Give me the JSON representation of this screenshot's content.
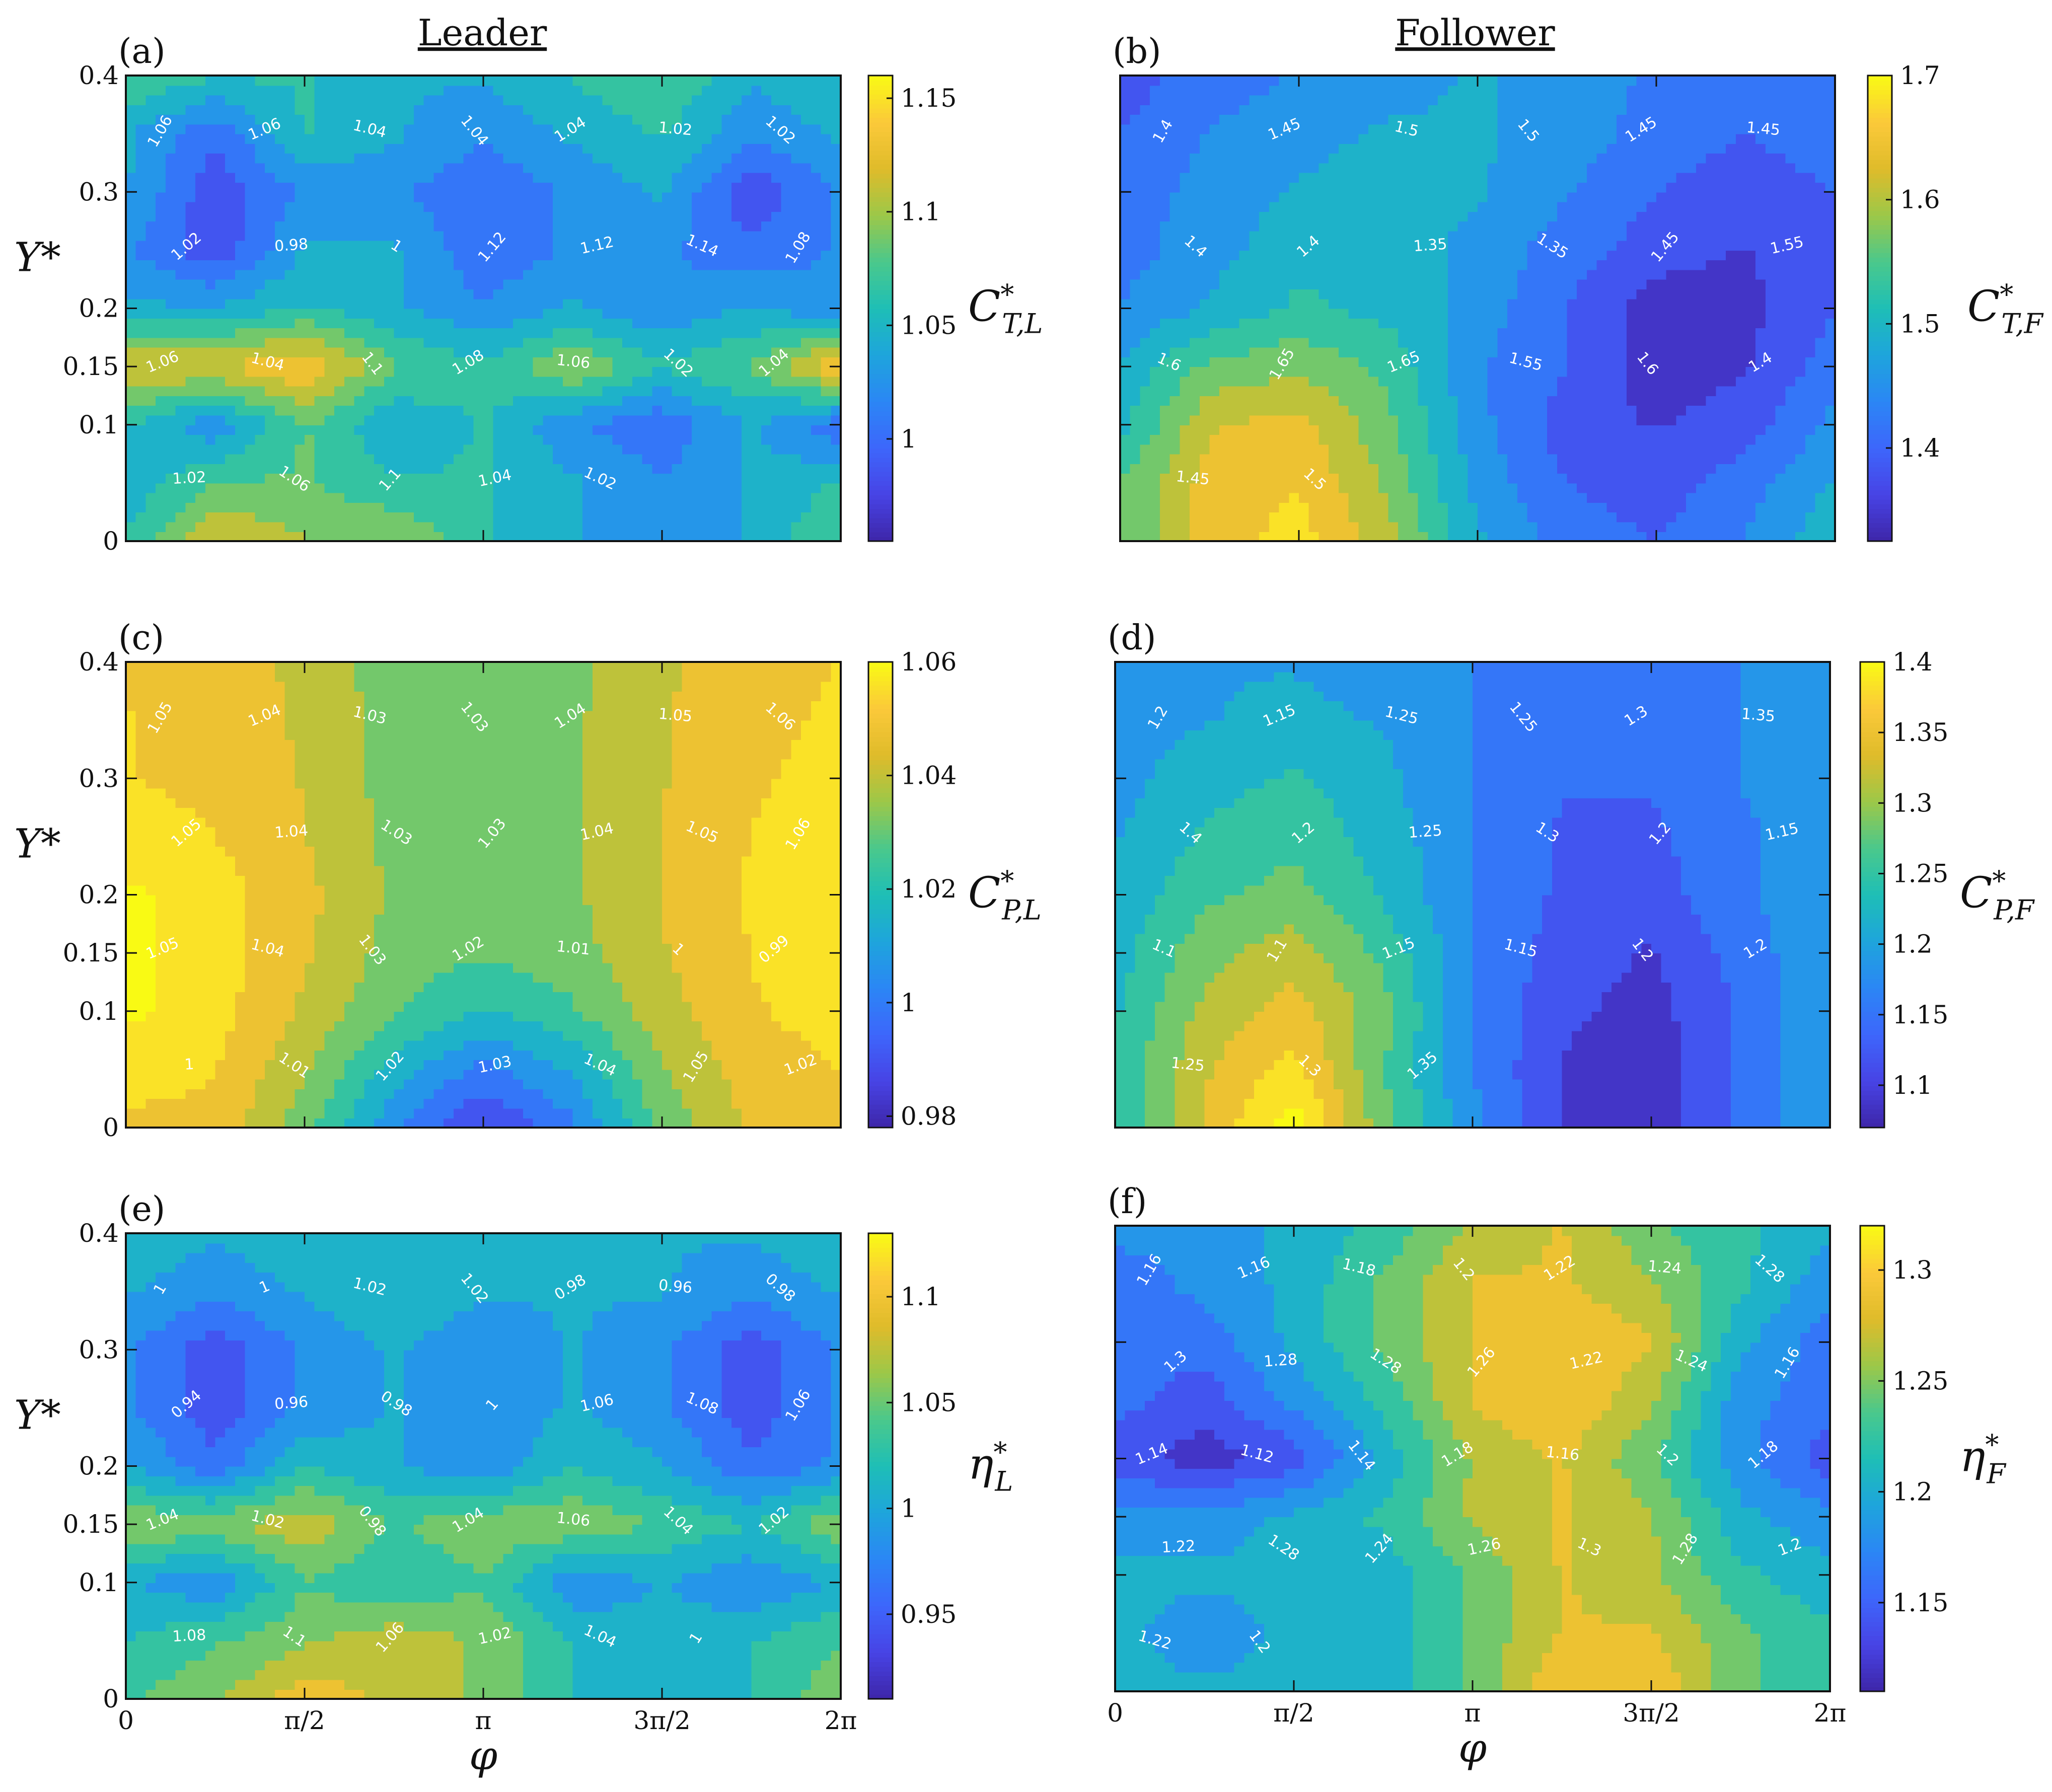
{
  "headers": {
    "leader": "Leader",
    "follower": "Follower"
  },
  "x_axis_label": "φ",
  "y_axis_label": "Y*",
  "x_ticks": [
    "0",
    "π/2",
    "π",
    "3π/2",
    "2π"
  ],
  "y_ticks": [
    "0",
    "0.1",
    "0.15",
    "0.2",
    "0.3",
    "0.4"
  ],
  "colormap": [
    "#3e26a8",
    "#4743e5",
    "#3d66fb",
    "#2b86f5",
    "#1ea5dc",
    "#1ebeb6",
    "#4ac88c",
    "#9cc849",
    "#dfbb2a",
    "#fbc93a",
    "#f9fa14"
  ],
  "chart_data": [
    {
      "type": "heatmap",
      "label": "(a)",
      "column": "Leader",
      "colorbar": {
        "symbol": "C",
        "sup": "*",
        "sub": "T,L",
        "ticks": [
          "1",
          "1.05",
          "1.1",
          "1.15"
        ],
        "tick_values": [
          1,
          1.05,
          1.1,
          1.15
        ],
        "range": [
          0.955,
          1.16
        ]
      },
      "y_ticks": [
        "0",
        "0.1",
        "0.15",
        "0.2",
        "0.3",
        "0.4"
      ],
      "show_x_ticks": false,
      "show_x_label": false,
      "show_y_label": true,
      "xlim": [
        0,
        6.2832
      ],
      "ylim": [
        0,
        0.4
      ],
      "x_nodes": [
        0,
        0.785,
        1.571,
        2.356,
        3.142,
        3.927,
        4.712,
        5.498,
        6.283
      ],
      "y_nodes": [
        0,
        0.05,
        0.1,
        0.15,
        0.2,
        0.25,
        0.3,
        0.35,
        0.4
      ],
      "z": [
        [
          1.06,
          1.12,
          1.1,
          1.1,
          1.06,
          1.04,
          1.02,
          1.04,
          1.08
        ],
        [
          1.04,
          1.08,
          1.08,
          1.06,
          1.06,
          1.04,
          1.02,
          1.04,
          1.06
        ],
        [
          1.06,
          1.02,
          1.08,
          1.04,
          1.06,
          1.02,
          1.0,
          1.04,
          1.0
        ],
        [
          1.12,
          1.12,
          1.14,
          1.08,
          1.06,
          1.1,
          1.06,
          1.08,
          1.14
        ],
        [
          1.04,
          1.04,
          1.06,
          1.04,
          1.02,
          1.04,
          1.02,
          1.04,
          1.02
        ],
        [
          1.02,
          0.98,
          1.04,
          1.04,
          1.0,
          1.02,
          1.02,
          1.0,
          1.02
        ],
        [
          1.04,
          0.98,
          1.02,
          1.02,
          1.0,
          1.02,
          1.04,
          0.98,
          1.02
        ],
        [
          1.04,
          1.0,
          1.06,
          1.04,
          1.02,
          1.04,
          1.06,
          1.02,
          1.04
        ],
        [
          1.08,
          1.06,
          1.06,
          1.04,
          1.04,
          1.06,
          1.08,
          1.04,
          1.06
        ]
      ],
      "contour_labels": [
        "1.06",
        "1.06",
        "1.04",
        "1.04",
        "1.04",
        "1.02",
        "1.02",
        "1.02",
        "0.98",
        "1",
        "1.12",
        "1.12",
        "1.14",
        "1.08",
        "1.06",
        "1.04",
        "1.1",
        "1.08",
        "1.06",
        "1.02",
        "1.04",
        "1.02",
        "1.06",
        "1.1",
        "1.04",
        "1.02"
      ]
    },
    {
      "type": "heatmap",
      "label": "(b)",
      "column": "Follower",
      "colorbar": {
        "symbol": "C",
        "sup": "*",
        "sub": "T,F",
        "ticks": [
          "1.4",
          "1.5",
          "1.6",
          "1.7"
        ],
        "tick_values": [
          1.4,
          1.5,
          1.6,
          1.7
        ],
        "range": [
          1.325,
          1.7
        ]
      },
      "y_ticks": [],
      "show_x_ticks": false,
      "show_x_label": false,
      "show_y_label": false,
      "xlim": [
        0,
        6.2832
      ],
      "ylim": [
        0,
        0.4
      ],
      "x_nodes": [
        0,
        0.785,
        1.571,
        2.356,
        3.142,
        3.927,
        4.712,
        5.498,
        6.283
      ],
      "y_nodes": [
        0,
        0.05,
        0.1,
        0.15,
        0.2,
        0.25,
        0.3,
        0.35,
        0.4
      ],
      "z": [
        [
          1.55,
          1.64,
          1.68,
          1.6,
          1.48,
          1.42,
          1.4,
          1.44,
          1.5
        ],
        [
          1.55,
          1.64,
          1.66,
          1.58,
          1.46,
          1.4,
          1.38,
          1.42,
          1.48
        ],
        [
          1.5,
          1.62,
          1.64,
          1.56,
          1.45,
          1.38,
          1.36,
          1.38,
          1.45
        ],
        [
          1.48,
          1.56,
          1.58,
          1.54,
          1.44,
          1.4,
          1.34,
          1.36,
          1.42
        ],
        [
          1.44,
          1.48,
          1.52,
          1.5,
          1.46,
          1.4,
          1.34,
          1.35,
          1.4
        ],
        [
          1.42,
          1.46,
          1.5,
          1.5,
          1.46,
          1.42,
          1.38,
          1.36,
          1.4
        ],
        [
          1.42,
          1.45,
          1.48,
          1.5,
          1.48,
          1.44,
          1.4,
          1.38,
          1.4
        ],
        [
          1.4,
          1.44,
          1.46,
          1.48,
          1.48,
          1.46,
          1.42,
          1.4,
          1.42
        ],
        [
          1.38,
          1.42,
          1.44,
          1.46,
          1.48,
          1.46,
          1.43,
          1.4,
          1.42
        ]
      ],
      "contour_labels": [
        "1.4",
        "1.45",
        "1.5",
        "1.5",
        "1.45",
        "1.45",
        "1.4",
        "1.4",
        "1.35",
        "1.35",
        "1.45",
        "1.55",
        "1.6",
        "1.65",
        "1.65",
        "1.55",
        "1.6",
        "1.4",
        "1.45",
        "1.5"
      ]
    },
    {
      "type": "heatmap",
      "label": "(c)",
      "column": "Leader",
      "colorbar": {
        "symbol": "C",
        "sup": "*",
        "sub": "P,L",
        "ticks": [
          "0.98",
          "1",
          "1.02",
          "1.04",
          "1.06"
        ],
        "tick_values": [
          0.98,
          1.0,
          1.02,
          1.04,
          1.06
        ],
        "range": [
          0.978,
          1.06
        ]
      },
      "y_ticks": [
        "0",
        "0.1",
        "0.15",
        "0.2",
        "0.3",
        "0.4"
      ],
      "show_x_ticks": false,
      "show_x_label": false,
      "show_y_label": true,
      "xlim": [
        0,
        6.2832
      ],
      "ylim": [
        0,
        0.4
      ],
      "x_nodes": [
        0,
        0.785,
        1.571,
        2.356,
        3.142,
        3.927,
        4.712,
        5.498,
        6.283
      ],
      "y_nodes": [
        0,
        0.05,
        0.1,
        0.15,
        0.2,
        0.25,
        0.3,
        0.35,
        0.4
      ],
      "z": [
        [
          1.05,
          1.05,
          1.03,
          1.005,
          0.985,
          1.0,
          1.03,
          1.045,
          1.05
        ],
        [
          1.055,
          1.052,
          1.037,
          1.015,
          1.0,
          1.012,
          1.035,
          1.048,
          1.052
        ],
        [
          1.062,
          1.055,
          1.042,
          1.028,
          1.018,
          1.026,
          1.04,
          1.051,
          1.055
        ],
        [
          1.062,
          1.056,
          1.045,
          1.032,
          1.028,
          1.032,
          1.043,
          1.052,
          1.056
        ],
        [
          1.062,
          1.055,
          1.046,
          1.034,
          1.03,
          1.034,
          1.044,
          1.053,
          1.058
        ],
        [
          1.055,
          1.052,
          1.044,
          1.033,
          1.03,
          1.034,
          1.044,
          1.052,
          1.055
        ],
        [
          1.052,
          1.05,
          1.043,
          1.032,
          1.03,
          1.034,
          1.043,
          1.051,
          1.054
        ],
        [
          1.052,
          1.05,
          1.042,
          1.032,
          1.03,
          1.034,
          1.043,
          1.05,
          1.053
        ],
        [
          1.051,
          1.049,
          1.041,
          1.031,
          1.03,
          1.033,
          1.042,
          1.049,
          1.052
        ]
      ],
      "contour_labels": [
        "1.05",
        "1.04",
        "1.03",
        "1.03",
        "1.04",
        "1.05",
        "1.06",
        "1.05",
        "1.04",
        "1.03",
        "1.03",
        "1.04",
        "1.05",
        "1.06",
        "1.05",
        "1.04",
        "1.03",
        "1.02",
        "1.01",
        "1",
        "0.99",
        "1",
        "1.01",
        "1.02",
        "1.03",
        "1.04",
        "1.05",
        "1.02"
      ]
    },
    {
      "type": "heatmap",
      "label": "(d)",
      "column": "Follower",
      "colorbar": {
        "symbol": "C",
        "sup": "*",
        "sub": "P,F",
        "ticks": [
          "1.1",
          "1.15",
          "1.2",
          "1.25",
          "1.3",
          "1.35",
          "1.4"
        ],
        "tick_values": [
          1.1,
          1.15,
          1.2,
          1.25,
          1.3,
          1.35,
          1.4
        ],
        "range": [
          1.07,
          1.4
        ]
      },
      "y_ticks": [],
      "show_x_ticks": false,
      "show_x_label": false,
      "show_y_label": false,
      "xlim": [
        0,
        6.2832
      ],
      "ylim": [
        0,
        0.4
      ],
      "x_nodes": [
        0,
        0.785,
        1.571,
        2.356,
        3.142,
        3.927,
        4.712,
        5.498,
        6.283
      ],
      "y_nodes": [
        0,
        0.05,
        0.1,
        0.15,
        0.2,
        0.25,
        0.3,
        0.35,
        0.4
      ],
      "z": [
        [
          1.24,
          1.34,
          1.42,
          1.28,
          1.18,
          1.1,
          1.08,
          1.14,
          1.2
        ],
        [
          1.24,
          1.33,
          1.38,
          1.27,
          1.17,
          1.1,
          1.08,
          1.14,
          1.2
        ],
        [
          1.23,
          1.31,
          1.35,
          1.28,
          1.17,
          1.11,
          1.09,
          1.14,
          1.2
        ],
        [
          1.22,
          1.29,
          1.32,
          1.26,
          1.17,
          1.12,
          1.1,
          1.15,
          1.2
        ],
        [
          1.21,
          1.26,
          1.28,
          1.23,
          1.17,
          1.13,
          1.12,
          1.16,
          1.2
        ],
        [
          1.2,
          1.24,
          1.26,
          1.22,
          1.17,
          1.13,
          1.13,
          1.16,
          1.2
        ],
        [
          1.19,
          1.22,
          1.24,
          1.21,
          1.17,
          1.14,
          1.14,
          1.17,
          1.2
        ],
        [
          1.19,
          1.2,
          1.21,
          1.2,
          1.17,
          1.14,
          1.14,
          1.17,
          1.2
        ],
        [
          1.19,
          1.2,
          1.2,
          1.19,
          1.17,
          1.15,
          1.15,
          1.17,
          1.2
        ]
      ],
      "contour_labels": [
        "1.2",
        "1.15",
        "1.25",
        "1.25",
        "1.3",
        "1.35",
        "1.4",
        "1.2",
        "1.25",
        "1.3",
        "1.2",
        "1.15",
        "1.1",
        "1.1",
        "1.15",
        "1.15",
        "1.2",
        "1.2",
        "1.25",
        "1.3",
        "1.35"
      ]
    },
    {
      "type": "heatmap",
      "label": "(e)",
      "column": "Leader",
      "colorbar": {
        "symbol": "η",
        "sup": "*",
        "sub": "L",
        "ticks": [
          "0.95",
          "1",
          "1.05",
          "1.1"
        ],
        "tick_values": [
          0.95,
          1.0,
          1.05,
          1.1
        ],
        "range": [
          0.91,
          1.13
        ]
      },
      "y_ticks": [
        "0",
        "0.1",
        "0.15",
        "0.2",
        "0.3",
        "0.4"
      ],
      "show_x_ticks": true,
      "show_x_label": true,
      "show_y_label": true,
      "xlim": [
        0,
        6.2832
      ],
      "ylim": [
        0,
        0.4
      ],
      "x_nodes": [
        0,
        0.785,
        1.571,
        2.356,
        3.142,
        3.927,
        4.712,
        5.498,
        6.283
      ],
      "y_nodes": [
        0,
        0.05,
        0.1,
        0.15,
        0.2,
        0.25,
        0.3,
        0.35,
        0.4
      ],
      "z": [
        [
          1.04,
          1.06,
          1.1,
          1.08,
          1.06,
          1.02,
          1.0,
          1.02,
          1.06
        ],
        [
          1.02,
          1.04,
          1.06,
          1.08,
          1.06,
          1.02,
          1.0,
          1.02,
          1.04
        ],
        [
          1.0,
          0.98,
          1.04,
          1.02,
          1.04,
          0.98,
          1.0,
          0.98,
          1.0
        ],
        [
          1.06,
          1.06,
          1.08,
          1.04,
          1.06,
          1.06,
          1.04,
          1.02,
          1.06
        ],
        [
          1.0,
          0.96,
          1.02,
          1.0,
          0.98,
          1.02,
          1.0,
          0.96,
          0.98
        ],
        [
          0.98,
          0.94,
          0.98,
          1.0,
          0.98,
          1.0,
          0.98,
          0.94,
          0.98
        ],
        [
          0.98,
          0.94,
          0.98,
          1.0,
          0.98,
          1.0,
          0.98,
          0.94,
          0.98
        ],
        [
          1.0,
          0.98,
          1.0,
          1.02,
          1.0,
          1.0,
          1.0,
          0.98,
          1.0
        ],
        [
          1.02,
          1.0,
          1.02,
          1.02,
          1.02,
          1.02,
          1.0,
          1.0,
          1.02
        ]
      ],
      "contour_labels": [
        "1",
        "1",
        "1.02",
        "1.02",
        "0.98",
        "0.96",
        "0.98",
        "0.94",
        "0.96",
        "0.98",
        "1",
        "1.06",
        "1.08",
        "1.06",
        "1.04",
        "1.02",
        "0.98",
        "1.04",
        "1.06",
        "1.04",
        "1.02",
        "1.08",
        "1.1",
        "1.06",
        "1.02",
        "1.04",
        "1"
      ]
    },
    {
      "type": "heatmap",
      "label": "(f)",
      "column": "Follower",
      "colorbar": {
        "symbol": "η",
        "sup": "*",
        "sub": "F",
        "ticks": [
          "1.15",
          "1.2",
          "1.25",
          "1.3"
        ],
        "tick_values": [
          1.15,
          1.2,
          1.25,
          1.3
        ],
        "range": [
          1.11,
          1.32
        ]
      },
      "y_ticks": [],
      "show_x_ticks": true,
      "show_x_label": true,
      "show_y_label": false,
      "xlim": [
        0,
        6.2832
      ],
      "ylim": [
        0,
        0.4
      ],
      "x_nodes": [
        0,
        0.785,
        1.571,
        2.356,
        3.142,
        3.927,
        4.712,
        5.498,
        6.283
      ],
      "y_nodes": [
        0,
        0.05,
        0.1,
        0.15,
        0.2,
        0.25,
        0.3,
        0.35,
        0.4
      ],
      "z": [
        [
          1.2,
          1.2,
          1.2,
          1.2,
          1.24,
          1.3,
          1.3,
          1.24,
          1.22
        ],
        [
          1.2,
          1.18,
          1.2,
          1.2,
          1.24,
          1.28,
          1.28,
          1.24,
          1.22
        ],
        [
          1.2,
          1.2,
          1.2,
          1.2,
          1.24,
          1.28,
          1.26,
          1.22,
          1.2
        ],
        [
          1.18,
          1.18,
          1.2,
          1.22,
          1.26,
          1.28,
          1.26,
          1.2,
          1.18
        ],
        [
          1.14,
          1.12,
          1.14,
          1.2,
          1.26,
          1.28,
          1.24,
          1.18,
          1.14
        ],
        [
          1.16,
          1.14,
          1.18,
          1.22,
          1.28,
          1.3,
          1.26,
          1.18,
          1.16
        ],
        [
          1.16,
          1.16,
          1.2,
          1.24,
          1.28,
          1.3,
          1.28,
          1.2,
          1.16
        ],
        [
          1.16,
          1.18,
          1.2,
          1.24,
          1.28,
          1.28,
          1.26,
          1.22,
          1.18
        ],
        [
          1.18,
          1.18,
          1.2,
          1.22,
          1.26,
          1.28,
          1.24,
          1.22,
          1.2
        ]
      ],
      "contour_labels": [
        "1.16",
        "1.16",
        "1.18",
        "1.2",
        "1.22",
        "1.24",
        "1.28",
        "1.3",
        "1.28",
        "1.28",
        "1.26",
        "1.22",
        "1.24",
        "1.16",
        "1.14",
        "1.12",
        "1.14",
        "1.18",
        "1.16",
        "1.2",
        "1.18",
        "1.22",
        "1.28",
        "1.24",
        "1.26",
        "1.3",
        "1.28",
        "1.2",
        "1.22",
        "1.2"
      ]
    }
  ]
}
